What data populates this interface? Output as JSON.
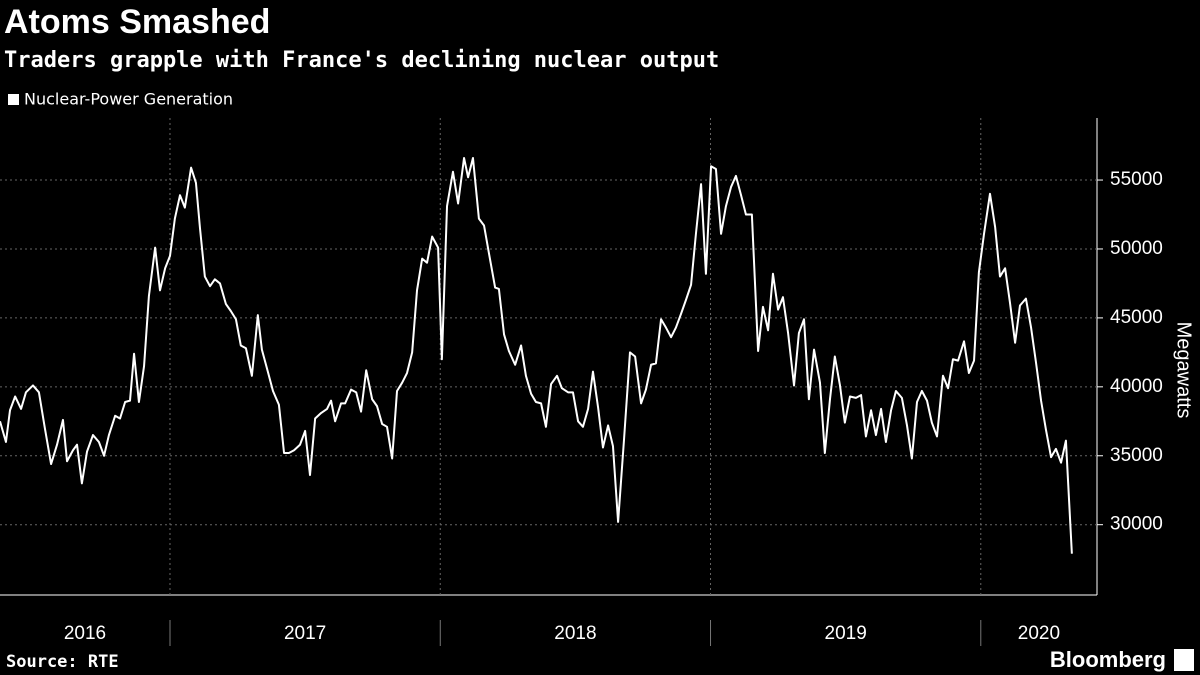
{
  "chart_data": {
    "type": "line",
    "title": "Atoms Smashed",
    "subtitle": "Traders grapple with France's declining nuclear output",
    "y_label": "Megawatts",
    "source": "Source: RTE",
    "brand": "Bloomberg",
    "legend": "top-left",
    "grid": true,
    "xlim": [
      2016.371,
      2020.43
    ],
    "xticks": [
      2016,
      2017,
      2018,
      2019,
      2020
    ],
    "ylim": [
      24900,
      59500
    ],
    "yticks": [
      30000,
      35000,
      40000,
      45000,
      50000,
      55000
    ],
    "x": [
      2016.371,
      2016.393,
      2016.408,
      2016.427,
      2016.449,
      2016.467,
      2016.493,
      2016.515,
      2016.537,
      2016.56,
      2016.582,
      2016.604,
      2016.619,
      2016.641,
      2016.656,
      2016.674,
      2016.693,
      2016.715,
      2016.737,
      2016.756,
      2016.774,
      2016.797,
      2016.815,
      2016.834,
      2016.852,
      2016.867,
      2016.885,
      2016.904,
      2016.922,
      2016.945,
      2016.963,
      2016.982,
      2017.0,
      2017.018,
      2017.037,
      2017.055,
      2017.078,
      2017.096,
      2017.111,
      2017.129,
      2017.148,
      2017.166,
      2017.185,
      2017.207,
      2017.225,
      2017.244,
      2017.262,
      2017.281,
      2017.303,
      2017.325,
      2017.34,
      2017.362,
      2017.381,
      2017.403,
      2017.422,
      2017.44,
      2017.459,
      2017.481,
      2017.5,
      2017.518,
      2017.537,
      2017.559,
      2017.581,
      2017.596,
      2017.611,
      2017.633,
      2017.648,
      2017.67,
      2017.689,
      2017.707,
      2017.726,
      2017.748,
      2017.766,
      2017.785,
      2017.803,
      2017.822,
      2017.84,
      2017.859,
      2017.877,
      2017.896,
      2017.914,
      2017.933,
      2017.951,
      2017.97,
      2017.992,
      2018.006,
      2018.025,
      2018.047,
      2018.066,
      2018.088,
      2018.103,
      2018.121,
      2018.143,
      2018.162,
      2018.18,
      2018.203,
      2018.217,
      2018.236,
      2018.254,
      2018.277,
      2018.299,
      2018.317,
      2018.336,
      2018.354,
      2018.373,
      2018.391,
      2018.41,
      2018.432,
      2018.45,
      2018.473,
      2018.491,
      2018.51,
      2018.528,
      2018.547,
      2018.565,
      2018.584,
      2018.602,
      2018.621,
      2018.639,
      2018.658,
      2018.68,
      2018.702,
      2018.721,
      2018.743,
      2018.761,
      2018.78,
      2018.798,
      2018.817,
      2018.835,
      2018.854,
      2018.872,
      2018.891,
      2018.909,
      2018.928,
      2018.946,
      2018.965,
      2018.983,
      2019.002,
      2019.02,
      2019.039,
      2019.057,
      2019.076,
      2019.094,
      2019.113,
      2019.131,
      2019.153,
      2019.176,
      2019.194,
      2019.213,
      2019.231,
      2019.25,
      2019.268,
      2019.287,
      2019.309,
      2019.327,
      2019.346,
      2019.364,
      2019.383,
      2019.405,
      2019.423,
      2019.442,
      2019.46,
      2019.479,
      2019.497,
      2019.516,
      2019.538,
      2019.557,
      2019.575,
      2019.594,
      2019.612,
      2019.631,
      2019.649,
      2019.668,
      2019.686,
      2019.708,
      2019.727,
      2019.745,
      2019.764,
      2019.782,
      2019.801,
      2019.819,
      2019.838,
      2019.86,
      2019.879,
      2019.897,
      2019.916,
      2019.938,
      2019.956,
      2019.975,
      2019.993,
      2020.012,
      2020.034,
      2020.053,
      2020.071,
      2020.09,
      2020.108,
      2020.127,
      2020.145,
      2020.167,
      2020.186,
      2020.204,
      2020.223,
      2020.241,
      2020.26,
      2020.278,
      2020.297,
      2020.315,
      2020.337
    ],
    "series": [
      {
        "name": "Nuclear-Power Generation",
        "color": "#ffffff",
        "values": [
          37500,
          36000,
          38300,
          39300,
          38400,
          39600,
          40100,
          39600,
          37000,
          34400,
          35800,
          37600,
          34600,
          35400,
          35800,
          33000,
          35300,
          36500,
          36000,
          35000,
          36500,
          37900,
          37700,
          38900,
          39000,
          42400,
          38900,
          41500,
          46600,
          50100,
          47000,
          48600,
          49500,
          52200,
          53900,
          53000,
          55900,
          54800,
          51500,
          48000,
          47300,
          47800,
          47500,
          46000,
          45500,
          44900,
          43000,
          42800,
          40800,
          45200,
          42700,
          41100,
          39700,
          38700,
          35200,
          35200,
          35400,
          35800,
          36800,
          33600,
          37700,
          38100,
          38400,
          39000,
          37500,
          38800,
          38800,
          39800,
          39600,
          38200,
          41200,
          39100,
          38600,
          37300,
          37100,
          34800,
          39700,
          40300,
          41000,
          42500,
          47000,
          49300,
          49000,
          50900,
          50100,
          42000,
          53100,
          55600,
          53300,
          56600,
          55200,
          56600,
          52200,
          51700,
          49700,
          47200,
          47100,
          43800,
          42600,
          41600,
          43000,
          40800,
          39500,
          38900,
          38800,
          37100,
          40200,
          40800,
          39900,
          39600,
          39600,
          37500,
          37100,
          38400,
          41100,
          38500,
          35600,
          37200,
          35700,
          30200,
          36200,
          42500,
          42200,
          38800,
          39800,
          41600,
          41700,
          44900,
          44300,
          43600,
          44300,
          45300,
          46300,
          47400,
          51100,
          54700,
          48200,
          56000,
          55800,
          51100,
          53100,
          54500,
          55300,
          53900,
          52500,
          52500,
          42600,
          45800,
          44100,
          48200,
          45600,
          46500,
          43900,
          40100,
          43900,
          44900,
          39100,
          42700,
          40300,
          35200,
          39100,
          42200,
          40100,
          37400,
          39300,
          39200,
          39400,
          36400,
          38300,
          36500,
          38400,
          36000,
          38300,
          39700,
          39200,
          37200,
          34800,
          38900,
          39700,
          39000,
          37400,
          36400,
          40800,
          39900,
          42000,
          41900,
          43300,
          41000,
          41900,
          48300,
          51100,
          54000,
          51600,
          48000,
          48600,
          46100,
          43200,
          45900,
          46400,
          44300,
          41800,
          39000,
          36900,
          34900,
          35500,
          34500,
          36100,
          27900
        ]
      }
    ]
  }
}
